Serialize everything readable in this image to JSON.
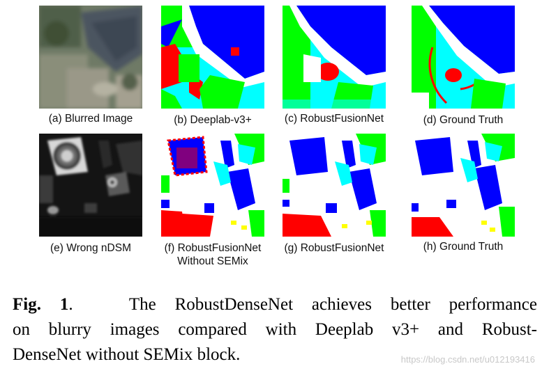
{
  "panels": [
    {
      "id": "a",
      "caption": "(a) Blurred Image"
    },
    {
      "id": "b",
      "caption": "(b) Deeplab-v3+"
    },
    {
      "id": "c",
      "caption": "(c) RobustFusionNet"
    },
    {
      "id": "d",
      "caption": "(d) Ground Truth"
    },
    {
      "id": "e",
      "caption": "(e) Wrong nDSM"
    },
    {
      "id": "f",
      "caption": "(f) RobustFusionNet",
      "caption2": "Without SEMix"
    },
    {
      "id": "g",
      "caption": "(g) RobustFusionNet"
    },
    {
      "id": "h",
      "caption": "(h) Ground Truth"
    }
  ],
  "figure_caption": {
    "label": "Fig. 1",
    "line1": "The RobustDenseNet achieves better performance",
    "line2": "on blurry images compared with Deeplab v3+ and Robust-",
    "line3": "DenseNet without SEMix block."
  },
  "watermark": "https://blog.csdn.net/u012193416",
  "colors": {
    "building": "#0000ff",
    "low_vegetation": "#00ffff",
    "tree": "#00ff00",
    "impervious": "#ffffff",
    "car": "#ffff00",
    "clutter": "#ff0000"
  }
}
